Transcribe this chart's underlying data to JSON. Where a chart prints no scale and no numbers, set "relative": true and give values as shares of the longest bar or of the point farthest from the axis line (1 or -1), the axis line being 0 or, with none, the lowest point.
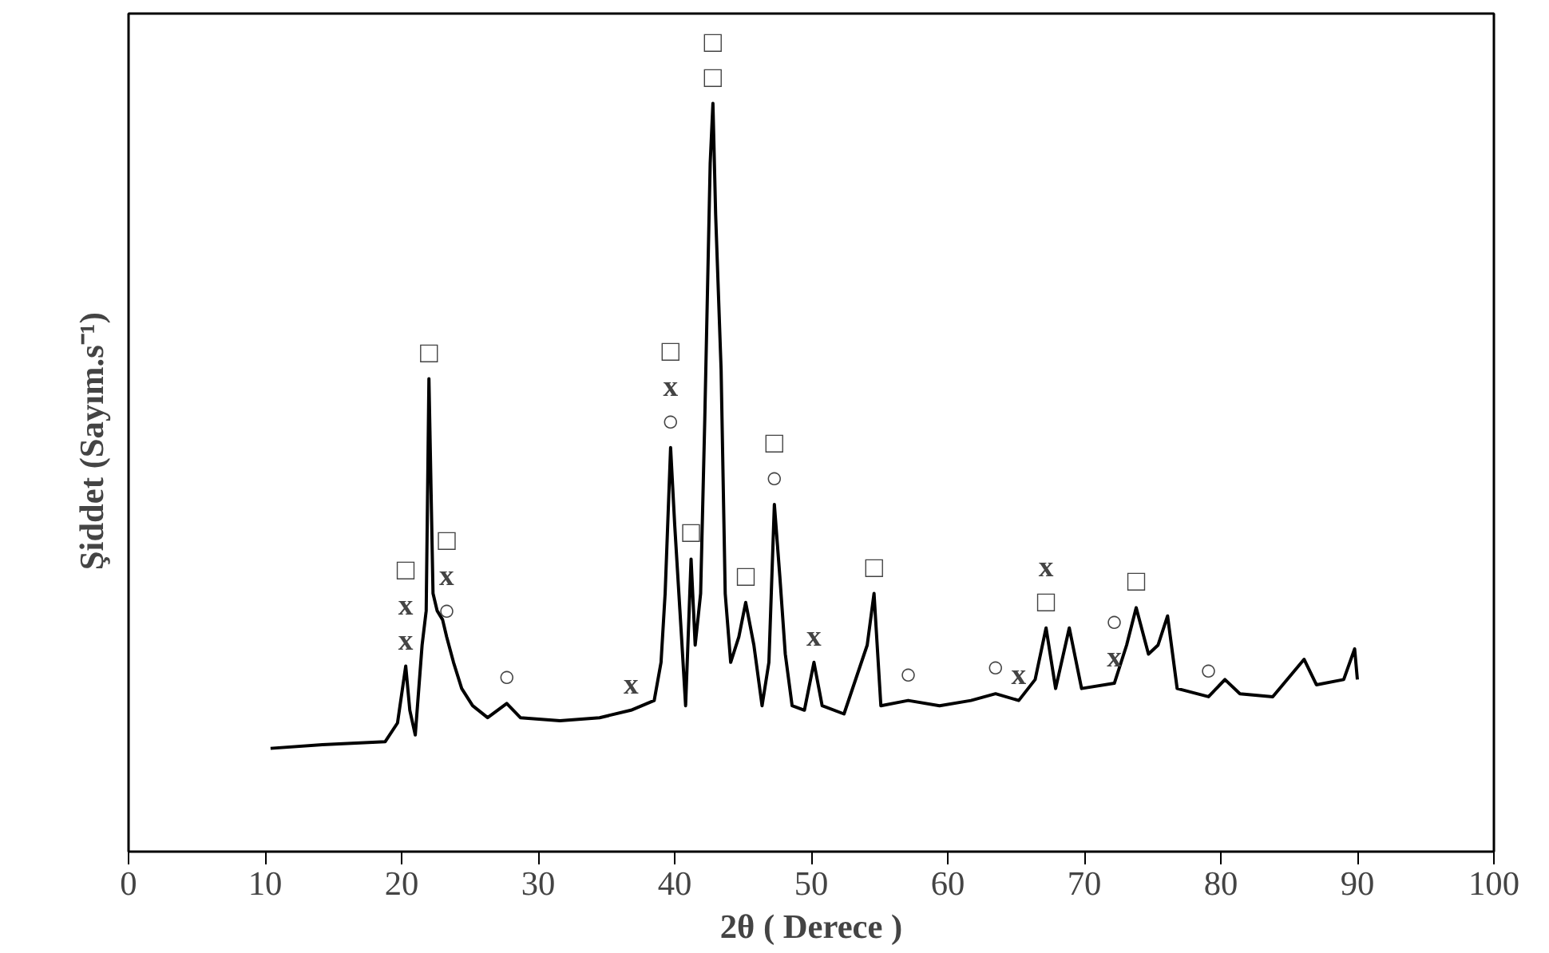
{
  "chart_data": {
    "type": "line",
    "relative": true,
    "xlabel": "2θ ( Derece )",
    "ylabel": "Şiddet   (Sayım.s⁻¹)",
    "xlim": [
      0,
      100
    ],
    "xticks": [
      0,
      10,
      20,
      30,
      40,
      50,
      60,
      70,
      80,
      90,
      100
    ],
    "tick_labels": "x",
    "grid": false,
    "marker": "none",
    "line_style": "solid",
    "series": [
      {
        "color": "#000000",
        "x": [
          10.4,
          14.2,
          18.8,
          19.7,
          20.3,
          20.6,
          21.0,
          21.5,
          21.8,
          22.0,
          22.3,
          22.6,
          23.0,
          23.3,
          23.8,
          24.4,
          25.2,
          26.3,
          27.7,
          28.7,
          31.6,
          34.5,
          36.8,
          38.5,
          39.0,
          39.3,
          39.7,
          40.0,
          40.5,
          40.8,
          41.2,
          41.5,
          41.9,
          42.2,
          42.6,
          42.8,
          43.0,
          43.4,
          43.7,
          44.1,
          44.7,
          45.2,
          45.8,
          46.4,
          46.9,
          47.3,
          47.7,
          48.1,
          48.6,
          49.5,
          50.2,
          50.8,
          52.4,
          54.1,
          54.6,
          55.1,
          57.1,
          59.4,
          61.7,
          63.5,
          65.2,
          66.4,
          67.2,
          67.9,
          68.9,
          69.8,
          72.2,
          73.1,
          73.8,
          74.7,
          75.4,
          76.1,
          76.8,
          79.1,
          80.3,
          81.4,
          83.8,
          86.1,
          87.0,
          89.0,
          89.8,
          90.0
        ],
        "values": [
          0.138,
          0.143,
          0.147,
          0.172,
          0.248,
          0.189,
          0.156,
          0.276,
          0.322,
          0.632,
          0.345,
          0.322,
          0.31,
          0.287,
          0.253,
          0.218,
          0.195,
          0.179,
          0.198,
          0.179,
          0.175,
          0.179,
          0.189,
          0.202,
          0.253,
          0.345,
          0.54,
          0.437,
          0.287,
          0.195,
          0.391,
          0.276,
          0.345,
          0.575,
          0.92,
          1.0,
          0.851,
          0.644,
          0.345,
          0.253,
          0.287,
          0.333,
          0.276,
          0.195,
          0.253,
          0.464,
          0.368,
          0.264,
          0.195,
          0.189,
          0.253,
          0.195,
          0.184,
          0.276,
          0.345,
          0.195,
          0.202,
          0.195,
          0.202,
          0.211,
          0.202,
          0.23,
          0.299,
          0.218,
          0.299,
          0.218,
          0.225,
          0.276,
          0.326,
          0.264,
          0.276,
          0.315,
          0.218,
          0.207,
          0.23,
          0.211,
          0.207,
          0.257,
          0.223,
          0.23,
          0.271,
          0.23
        ]
      }
    ],
    "annotations": [
      {
        "text": "x",
        "x": 20.3,
        "y": 0.248
      },
      {
        "text": "x",
        "x": 20.3,
        "y": 0.248
      },
      {
        "text": "□",
        "x": 20.3,
        "y": 0.248
      },
      {
        "text": "□",
        "x": 22.0,
        "y": 0.632
      },
      {
        "text": "○",
        "x": 23.3,
        "y": 0.287
      },
      {
        "text": "x",
        "x": 23.3,
        "y": 0.287
      },
      {
        "text": "□",
        "x": 23.3,
        "y": 0.287
      },
      {
        "text": "○",
        "x": 27.7,
        "y": 0.198
      },
      {
        "text": "x",
        "x": 36.8,
        "y": 0.189
      },
      {
        "text": "○",
        "x": 39.7,
        "y": 0.54
      },
      {
        "text": "x",
        "x": 39.7,
        "y": 0.54
      },
      {
        "text": "□",
        "x": 39.7,
        "y": 0.54
      },
      {
        "text": "□",
        "x": 42.8,
        "y": 1.0
      },
      {
        "text": "□",
        "x": 42.8,
        "y": 1.0
      },
      {
        "text": "□",
        "x": 41.2,
        "y": 0.391
      },
      {
        "text": "□",
        "x": 45.2,
        "y": 0.333
      },
      {
        "text": "○",
        "x": 47.3,
        "y": 0.464
      },
      {
        "text": "□",
        "x": 47.3,
        "y": 0.464
      },
      {
        "text": "x",
        "x": 50.2,
        "y": 0.253
      },
      {
        "text": "□",
        "x": 54.6,
        "y": 0.345
      },
      {
        "text": "○",
        "x": 57.1,
        "y": 0.202
      },
      {
        "text": "○",
        "x": 63.5,
        "y": 0.211
      },
      {
        "text": "x",
        "x": 65.2,
        "y": 0.202
      },
      {
        "text": "□",
        "x": 67.2,
        "y": 0.299
      },
      {
        "text": "x",
        "x": 67.2,
        "y": 0.299
      },
      {
        "text": "x",
        "x": 72.2,
        "y": 0.225
      },
      {
        "text": "○",
        "x": 72.2,
        "y": 0.225
      },
      {
        "text": "□",
        "x": 73.8,
        "y": 0.326
      },
      {
        "text": "○",
        "x": 79.1,
        "y": 0.207
      }
    ]
  }
}
